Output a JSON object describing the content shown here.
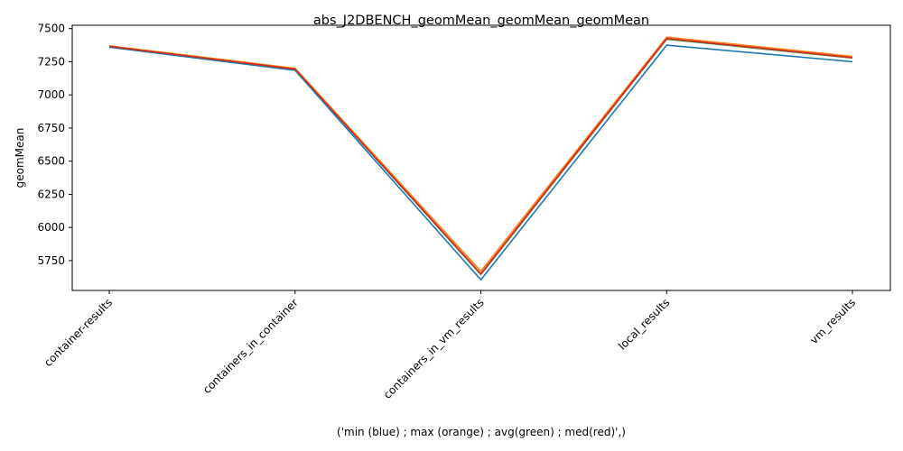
{
  "chart_data": {
    "type": "line",
    "title": "abs_J2DBENCH_geomMean_geomMean_geomMean",
    "xlabel": "('min (blue) ; max (orange) ; avg(green) ; med(red)',)",
    "ylabel": "geomMean",
    "categories": [
      "container-results",
      "containers_in_container",
      "containers_in_vm_results",
      "local_results",
      "vm_results"
    ],
    "yticks": [
      5750,
      6000,
      6250,
      6500,
      6750,
      7000,
      7250,
      7500
    ],
    "ylim": [
      5525,
      7525
    ],
    "grid": false,
    "series": [
      {
        "key": "min",
        "color": "#1f77b4",
        "values": [
          7360,
          7185,
          5605,
          7375,
          7250
        ]
      },
      {
        "key": "max",
        "color": "#ff7f0e",
        "values": [
          7370,
          7200,
          5670,
          7435,
          7290
        ]
      },
      {
        "key": "avg",
        "color": "#2ca02c",
        "values": [
          7365,
          7193,
          5645,
          7420,
          7278
        ]
      },
      {
        "key": "med",
        "color": "#d62728",
        "values": [
          7366,
          7194,
          5650,
          7425,
          7281
        ]
      }
    ]
  }
}
